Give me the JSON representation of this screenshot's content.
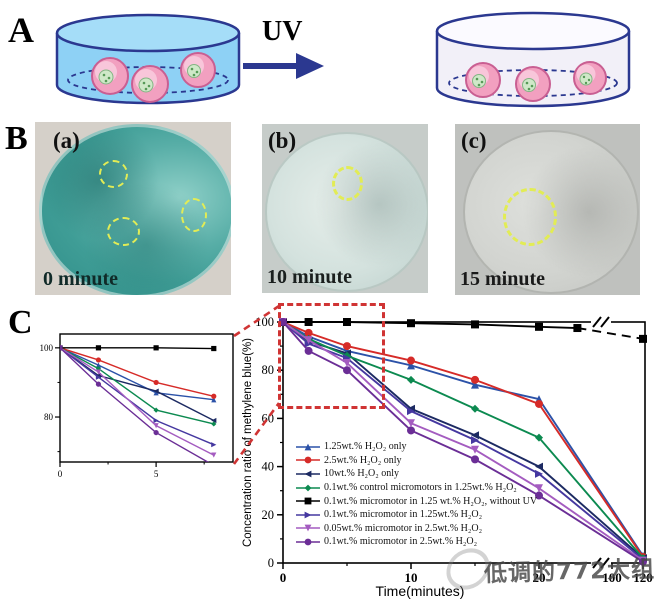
{
  "panel_a": {
    "label": "A",
    "uv_label": "UV",
    "left_dish_fill": "#8ed1f5",
    "right_dish_fill": "#f2f0f8",
    "outline_color": "#2b3890"
  },
  "panel_b": {
    "label": "B",
    "photos": [
      {
        "tag": "(a)",
        "time": "0 minute"
      },
      {
        "tag": "(b)",
        "time": "10 minute"
      },
      {
        "tag": "(c)",
        "time": "15 minute"
      }
    ]
  },
  "panel_c": {
    "label": "C"
  },
  "watermark": {
    "text": "低调的772大组"
  },
  "chart_data": {
    "main": {
      "type": "line",
      "title": "",
      "xlabel": "Time(minutes)",
      "ylabel": "Concentration ratio of methylene blue(%)",
      "ylim": [
        0,
        100
      ],
      "x_major_ticks": [
        0,
        10,
        20,
        100,
        120
      ],
      "x_minor_ticks": [
        5,
        15
      ],
      "y_major_ticks": [
        0,
        20,
        40,
        60,
        80,
        100
      ],
      "y_minor_ticks": [
        10,
        30,
        50,
        70,
        90
      ],
      "axis_break_between": [
        25,
        100
      ],
      "grid": false,
      "legend_position": "lower-left",
      "callout_color": "#d03434",
      "series": [
        {
          "name": "1.25wt.% H₂O₂ only",
          "color": "#2c52a8",
          "marker": "triangle-up",
          "x": [
            0,
            2,
            5,
            10,
            15,
            20,
            120
          ],
          "y": [
            100,
            94,
            88,
            82,
            74,
            68,
            3
          ]
        },
        {
          "name": "2.5wt.% H₂O₂ only",
          "color": "#d62b28",
          "marker": "circle",
          "x": [
            0,
            2,
            5,
            10,
            15,
            20,
            120
          ],
          "y": [
            100,
            95.5,
            90,
            84,
            76,
            66,
            2.5
          ]
        },
        {
          "name": "10wt.% H₂O₂ only",
          "color": "#1c2a62",
          "marker": "triangle-left",
          "x": [
            0,
            2,
            5,
            10,
            15,
            20,
            120
          ],
          "y": [
            100,
            92,
            87,
            64,
            53,
            40,
            2
          ]
        },
        {
          "name": "0.1wt.% control micromotors in 1.25wt.% H₂O₂",
          "color": "#0c8a50",
          "marker": "diamond",
          "x": [
            0,
            2,
            5,
            10,
            15,
            20,
            120
          ],
          "y": [
            100,
            93,
            86,
            76,
            64,
            52,
            2
          ]
        },
        {
          "name": "0.1wt.% micromotor in 1.25 wt.% H₂O₂, without UV",
          "color": "#000000",
          "marker": "square",
          "x": [
            0,
            2,
            5,
            10,
            15,
            20,
            23,
            120
          ],
          "y": [
            100,
            100,
            100,
            99.5,
            99,
            98,
            97.5,
            93
          ],
          "dash_from": 23
        },
        {
          "name": "0.1wt.% micromotor in 1.25wt.% H₂O₂",
          "color": "#4538a0",
          "marker": "triangle-right",
          "x": [
            0,
            2,
            5,
            10,
            15,
            20,
            120
          ],
          "y": [
            100,
            91,
            85,
            63,
            51,
            37,
            1.5
          ]
        },
        {
          "name": "0.05wt.% micromotor in 2.5wt.% H₂O₂",
          "color": "#a45cc0",
          "marker": "triangle-down",
          "x": [
            0,
            2,
            5,
            10,
            15,
            20,
            120
          ],
          "y": [
            100,
            92.5,
            83,
            58,
            47,
            31,
            1
          ]
        },
        {
          "name": "0.1wt.% micromotor in 2.5wt.% H₂O₂",
          "color": "#6b2e96",
          "marker": "circle",
          "x": [
            0,
            2,
            5,
            10,
            15,
            20,
            120
          ],
          "y": [
            100,
            88,
            80,
            55,
            43,
            28,
            0.5
          ]
        }
      ]
    },
    "inset": {
      "type": "line",
      "xlim": [
        0,
        9
      ],
      "ylim": [
        67,
        104
      ],
      "x_major_ticks": [
        0,
        5
      ],
      "x_minor_ticks": [
        2.5,
        7.5
      ],
      "y_major_ticks": [
        80,
        100
      ],
      "y_minor_ticks": [
        70,
        90
      ],
      "x": [
        0,
        2,
        5,
        8
      ],
      "series_y": [
        [
          100,
          95,
          87,
          85
        ],
        [
          100,
          96.5,
          90,
          86
        ],
        [
          100,
          92,
          87.5,
          79
        ],
        [
          100,
          94,
          82,
          78
        ],
        [
          100,
          100,
          100,
          99.8
        ],
        [
          100,
          91.5,
          79,
          72
        ],
        [
          100,
          93,
          77.5,
          69
        ],
        [
          100,
          89.5,
          75.5,
          66
        ]
      ]
    }
  }
}
